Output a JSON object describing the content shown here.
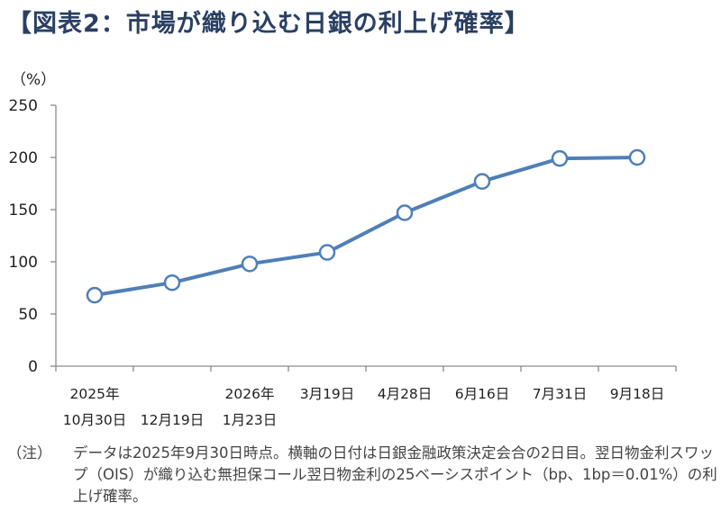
{
  "title": "【図表2：市場が織り込む日銀の利上げ確率】",
  "chart_data": {
    "type": "line",
    "ylabel": "（%）",
    "ylim": [
      0,
      250
    ],
    "yticks": [
      0,
      50,
      100,
      150,
      200,
      250
    ],
    "grid": false,
    "color": "#4f7fb8",
    "categories": [
      {
        "line1": "2025年",
        "line2": "10月30日"
      },
      {
        "line1": "",
        "line2": "12月19日"
      },
      {
        "line1": "2026年",
        "line2": "1月23日"
      },
      {
        "line1": "3月19日",
        "line2": ""
      },
      {
        "line1": "4月28日",
        "line2": ""
      },
      {
        "line1": "6月16日",
        "line2": ""
      },
      {
        "line1": "7月31日",
        "line2": ""
      },
      {
        "line1": "9月18日",
        "line2": ""
      }
    ],
    "series": [
      {
        "values": [
          68,
          80,
          98,
          109,
          147,
          177,
          199,
          200
        ]
      }
    ]
  },
  "note": {
    "label": "（注）",
    "text": "データは2025年9月30日時点。横軸の日付は日銀金融政策決定会合の2日目。翌日物金利スワップ（OIS）が織り込む無担保コール翌日物金利の25ベーシスポイント（bp、1bp＝0.01%）の利上げ確率。"
  }
}
